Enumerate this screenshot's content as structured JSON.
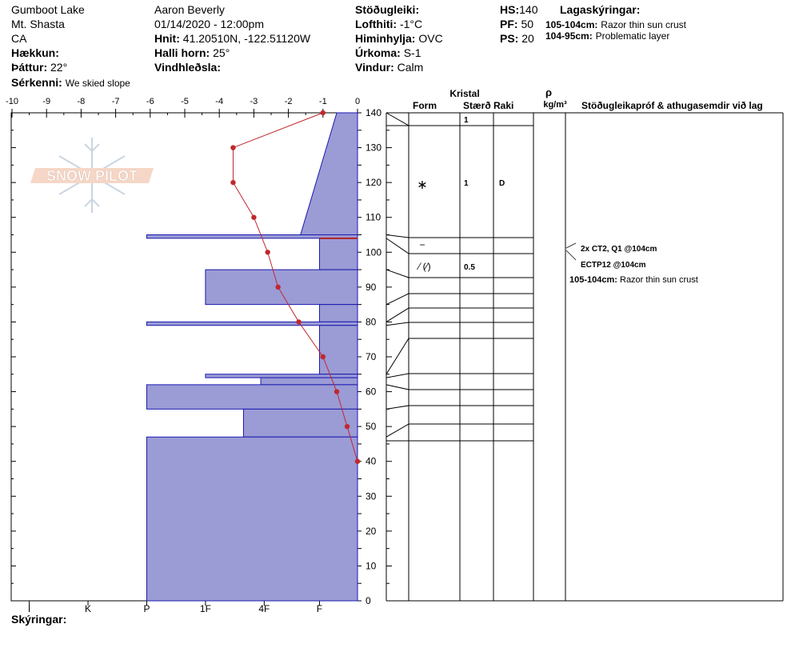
{
  "header": {
    "location": "Gumboot Lake",
    "range": "Mt. Shasta",
    "state": "CA",
    "elevation_label": "Hækkun:",
    "aspect_label": "Þáttur:",
    "aspect_value": "22°",
    "features_label": "Sérkenni:",
    "features_value": "We skied slope",
    "observer": "Aaron Beverly",
    "datetime": "01/14/2020 - 12:00pm",
    "coords_label": "Hnit:",
    "coords_value": "41.20510N, -122.51120W",
    "slope_label": "Halli horn:",
    "slope_value": "25°",
    "wind_load_label": "Vindhleðsla:",
    "stability_label": "Stöðugleiki:",
    "air_temp_label": "Lofthiti:",
    "air_temp_value": "-1°C",
    "sky_label": "Himinhylja:",
    "sky_value": "OVC",
    "precip_label": "Úrkoma:",
    "precip_value": "S-1",
    "wind_label": "Vindur:",
    "wind_value": "Calm",
    "hs_label": "HS:",
    "hs_value": "140",
    "pf_label": "PF:",
    "pf_value": "50",
    "ps_label": "PS:",
    "ps_value": "20",
    "layers_title": "Lagaskýringar:",
    "layer_notes": [
      {
        "range": "105-104cm:",
        "text": "Razor thin sun crust"
      },
      {
        "range": "104-95cm:",
        "text": "Problematic layer"
      }
    ]
  },
  "footer": {
    "legend_label": "Skýringar:"
  },
  "watermark": "SNOW PILOT",
  "table": {
    "kristal": "Kristal",
    "form": "Form",
    "size": "Stærð",
    "moisture": "Raki",
    "rho": "ρ",
    "density_unit": "kg/m³",
    "tests": "Stöðugleikapróf & athugasemdir við lag"
  },
  "chart_data": {
    "type": "area",
    "y_range": [
      0,
      140
    ],
    "y_ticks": [
      0,
      10,
      20,
      30,
      40,
      50,
      60,
      70,
      80,
      90,
      100,
      110,
      120,
      130,
      140
    ],
    "temp_axis": {
      "range": [
        -10,
        0
      ],
      "ticks": [
        -10,
        -9,
        -8,
        -7,
        -6,
        -5,
        -4,
        -3,
        -2,
        -1,
        0
      ]
    },
    "hardness_axis": {
      "labels": [
        "I",
        "K",
        "P",
        "1F",
        "4F",
        "F"
      ]
    },
    "temperature_profile": [
      {
        "temp": -1.0,
        "height": 140
      },
      {
        "temp": -3.6,
        "height": 130
      },
      {
        "temp": -3.6,
        "height": 120
      },
      {
        "temp": -3.0,
        "height": 110
      },
      {
        "temp": -2.6,
        "height": 100
      },
      {
        "temp": -2.3,
        "height": 90
      },
      {
        "temp": -1.7,
        "height": 80
      },
      {
        "temp": -1.0,
        "height": 70
      },
      {
        "temp": -0.6,
        "height": 60
      },
      {
        "temp": -0.3,
        "height": 50
      },
      {
        "temp": 0.0,
        "height": 40
      }
    ],
    "hardness_layers": [
      {
        "top": 140,
        "bottom": 105,
        "hardness_top": -0.6,
        "hardness_bottom": -1.65
      },
      {
        "top": 105,
        "bottom": 104,
        "hardness": -6.1
      },
      {
        "top": 104,
        "bottom": 95,
        "hardness": -1.1
      },
      {
        "top": 95,
        "bottom": 85,
        "hardness": -4.4
      },
      {
        "top": 85,
        "bottom": 80,
        "hardness": -1.1
      },
      {
        "top": 80,
        "bottom": 79,
        "hardness": -6.1
      },
      {
        "top": 79,
        "bottom": 65,
        "hardness": -1.1
      },
      {
        "top": 65,
        "bottom": 64,
        "hardness": -4.4
      },
      {
        "top": 64,
        "bottom": 62,
        "hardness": -2.8
      },
      {
        "top": 62,
        "bottom": 55,
        "hardness": -6.1
      },
      {
        "top": 55,
        "bottom": 47,
        "hardness": -3.3
      },
      {
        "top": 47,
        "bottom": 0,
        "hardness": -6.1
      }
    ],
    "layer_boundaries": [
      140,
      105,
      104,
      95,
      85,
      80,
      79,
      65,
      64,
      62,
      55,
      47
    ],
    "layer_rows": [
      {
        "top": 140,
        "form": "",
        "size": "1",
        "moisture": ""
      },
      {
        "top": 120,
        "form": "∗",
        "size": "1",
        "moisture": "D"
      },
      {
        "top": 105,
        "form": "−",
        "size": "",
        "moisture": ""
      },
      {
        "top": 100,
        "form": "⁄ (⁄)",
        "size": "0.5",
        "moisture": ""
      }
    ],
    "tests": [
      {
        "height": 104,
        "text": "2x CT2, Q1 @104cm"
      },
      {
        "height": 104,
        "text": "ECTP12 @104cm"
      }
    ],
    "layer_comment": {
      "height": 104,
      "text": "105-104cm: Razor thin sun crust"
    }
  }
}
